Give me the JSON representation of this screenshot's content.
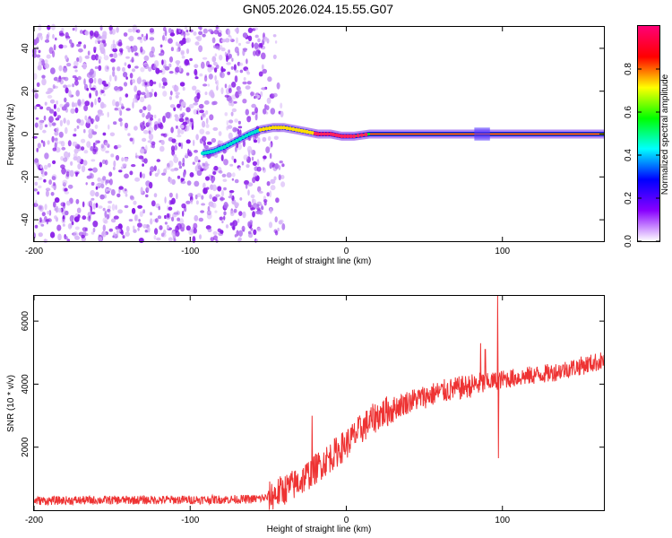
{
  "title": "GN05.2026.024.15.55.G07",
  "chart_data": [
    {
      "type": "heatmap",
      "name": "spectrogram",
      "xlabel": "Height of straight line (km)",
      "ylabel": "Frequency (Hz)",
      "xlim": [
        -200,
        165
      ],
      "ylim": [
        -50,
        50
      ],
      "x_ticks": [
        "-200",
        "-100",
        "0",
        "100"
      ],
      "x_tick_values": [
        -200,
        -100,
        0,
        100
      ],
      "y_ticks": [
        "-40",
        "-20",
        "0",
        "20",
        "40"
      ],
      "y_tick_values": [
        -40,
        -20,
        0,
        20,
        40
      ],
      "noise_region_km": [
        -200,
        -40
      ],
      "ridge": [
        {
          "x": -92,
          "f": -9
        },
        {
          "x": -85,
          "f": -8
        },
        {
          "x": -78,
          "f": -6
        },
        {
          "x": -70,
          "f": -3
        },
        {
          "x": -62,
          "f": 0
        },
        {
          "x": -55,
          "f": 2
        },
        {
          "x": -47,
          "f": 3
        },
        {
          "x": -40,
          "f": 3
        },
        {
          "x": -32,
          "f": 2
        },
        {
          "x": -25,
          "f": 1
        },
        {
          "x": -18,
          "f": 0
        },
        {
          "x": -10,
          "f": 0
        },
        {
          "x": -3,
          "f": -1
        },
        {
          "x": 5,
          "f": -1
        },
        {
          "x": 15,
          "f": 0
        },
        {
          "x": 165,
          "f": 0
        }
      ],
      "colorbar": {
        "label": "Normalized spectral amplitude",
        "ticks": [
          "0.0",
          "0.2",
          "0.4",
          "0.6",
          "0.8"
        ],
        "tick_values": [
          0.0,
          0.2,
          0.4,
          0.6,
          0.8
        ],
        "range": [
          0,
          1
        ],
        "colors": [
          "#ffffff",
          "#8800ff",
          "#0000ff",
          "#00ffff",
          "#00ff00",
          "#ffff00",
          "#ff0000",
          "#ff0077"
        ]
      }
    },
    {
      "type": "line",
      "name": "snr",
      "xlabel": "Height of straight line (km)",
      "ylabel": "SNR (10 * v/v)",
      "xlim": [
        -200,
        165
      ],
      "ylim": [
        0,
        6800
      ],
      "x_ticks": [
        "-200",
        "-100",
        "0",
        "100"
      ],
      "x_tick_values": [
        -200,
        -100,
        0,
        100
      ],
      "y_ticks": [
        "2000",
        "4000",
        "6000"
      ],
      "y_tick_values": [
        2000,
        4000,
        6000
      ],
      "color": "#ee3333",
      "trend": [
        {
          "x": -200,
          "y": 300
        },
        {
          "x": -150,
          "y": 320
        },
        {
          "x": -100,
          "y": 330
        },
        {
          "x": -60,
          "y": 350
        },
        {
          "x": -50,
          "y": 400
        },
        {
          "x": -40,
          "y": 650
        },
        {
          "x": -30,
          "y": 900
        },
        {
          "x": -20,
          "y": 1300
        },
        {
          "x": -10,
          "y": 1700
        },
        {
          "x": 0,
          "y": 2100
        },
        {
          "x": 10,
          "y": 2600
        },
        {
          "x": 20,
          "y": 3000
        },
        {
          "x": 40,
          "y": 3450
        },
        {
          "x": 60,
          "y": 3750
        },
        {
          "x": 80,
          "y": 3950
        },
        {
          "x": 100,
          "y": 4150
        },
        {
          "x": 130,
          "y": 4350
        },
        {
          "x": 165,
          "y": 4750
        }
      ],
      "spikes": [
        {
          "x": -22,
          "y": 3000
        },
        {
          "x": 86,
          "y": 5300
        },
        {
          "x": 89,
          "y": 5100
        },
        {
          "x": 97,
          "y": 6800
        },
        {
          "x": 97.5,
          "y": 1650
        }
      ]
    }
  ]
}
